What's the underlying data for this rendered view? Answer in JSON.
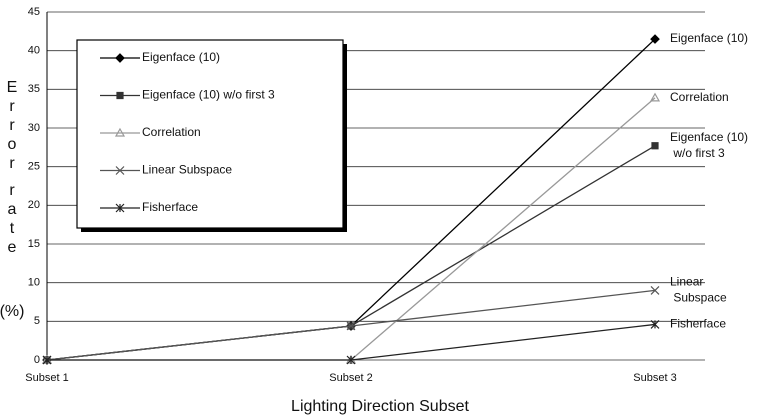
{
  "chart_data": {
    "type": "line",
    "x_label": "Lighting Direction Subset",
    "y_label": "Error rate (%)",
    "categories": [
      "Subset 1",
      "Subset 2",
      "Subset 3"
    ],
    "series": [
      {
        "name": "Eigenface (10)",
        "color": "#000000",
        "marker": "diamond",
        "values": [
          0,
          4.4,
          41.5
        ]
      },
      {
        "name": "Eigenface (10) w/o first 3",
        "color": "#333333",
        "marker": "square",
        "values": [
          0,
          4.4,
          27.7
        ]
      },
      {
        "name": "Correlation",
        "color": "#999999",
        "marker": "triangle",
        "values": [
          0,
          0,
          33.9
        ]
      },
      {
        "name": "Linear Subspace",
        "color": "#555555",
        "marker": "x",
        "values": [
          0,
          4.4,
          9.0
        ]
      },
      {
        "name": "Fisherface",
        "color": "#222222",
        "marker": "star",
        "values": [
          0,
          0,
          4.6
        ]
      }
    ],
    "ylim": [
      0,
      45
    ],
    "yticks": [
      0,
      5,
      10,
      15,
      20,
      25,
      30,
      35,
      40,
      45
    ],
    "grid": true,
    "legend": "upper left"
  }
}
